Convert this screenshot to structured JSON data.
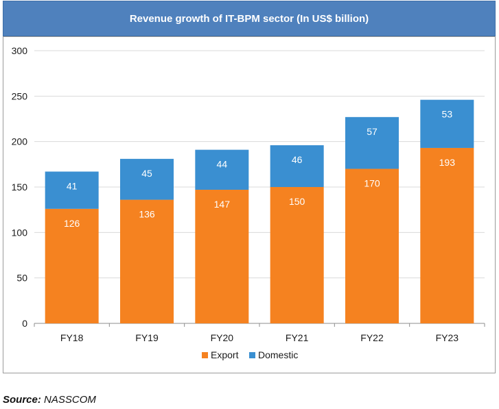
{
  "header": {
    "title": "Revenue growth of IT-BPM sector (In US$ billion)"
  },
  "chart_data": {
    "type": "bar",
    "stacked": true,
    "title": "Revenue growth of IT-BPM sector (In US$ billion)",
    "categories": [
      "FY18",
      "FY19",
      "FY20",
      "FY21",
      "FY22",
      "FY23"
    ],
    "series": [
      {
        "name": "Export",
        "color": "#f58220",
        "values": [
          126,
          136,
          147,
          150,
          170,
          193
        ]
      },
      {
        "name": "Domestic",
        "color": "#3a8fd1",
        "values": [
          41,
          45,
          44,
          46,
          57,
          53
        ]
      }
    ],
    "ylim": [
      0,
      300
    ],
    "yticks": [
      0,
      50,
      100,
      150,
      200,
      250,
      300
    ],
    "grid": true,
    "legend": "bottom",
    "xlabel": "",
    "ylabel": ""
  },
  "footer": {
    "source_label": "Source:",
    "source_value": "NASSCOM"
  }
}
